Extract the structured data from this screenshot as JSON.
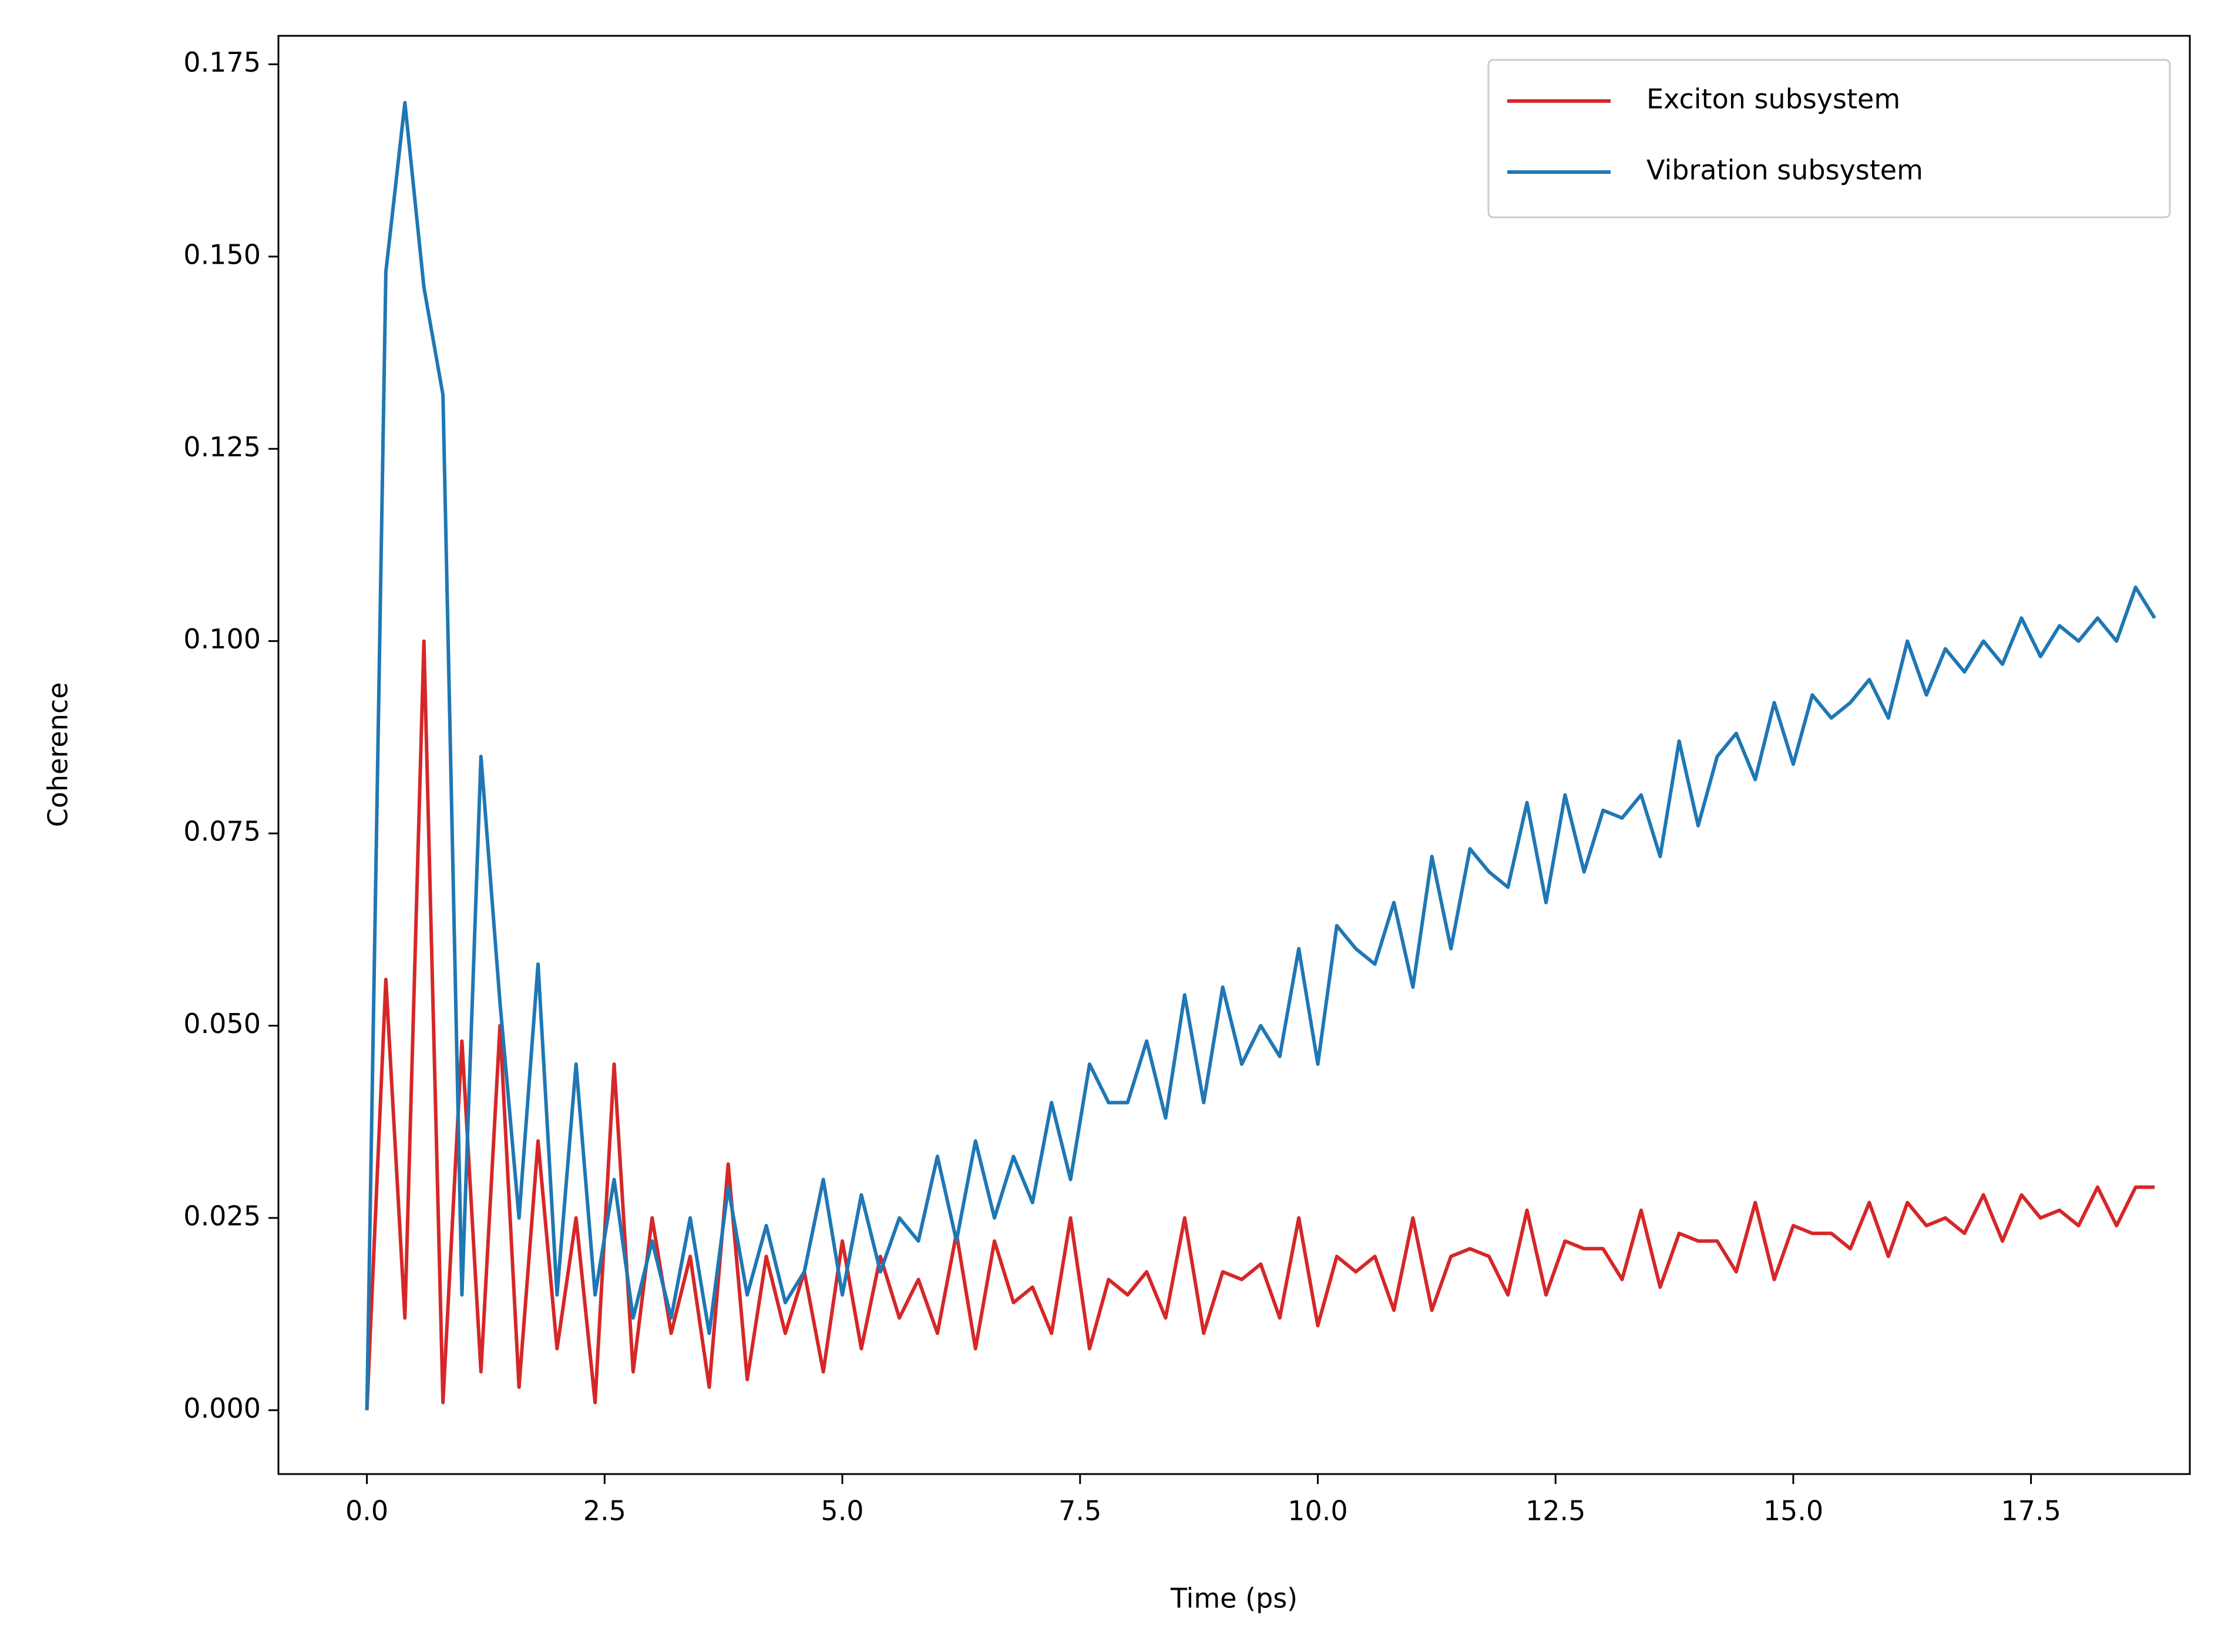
{
  "chart_data": {
    "type": "line",
    "xlabel": "Time (ps)",
    "ylabel": "Coherence",
    "x": [
      0,
      0.2,
      0.4,
      0.6,
      0.8,
      1.0,
      1.2,
      1.4,
      1.6,
      1.8,
      2.0,
      2.2,
      2.4,
      2.6,
      2.8,
      3.0,
      3.2,
      3.4,
      3.6,
      3.8,
      4.0,
      4.2,
      4.4,
      4.6,
      4.8,
      5.0,
      5.2,
      5.4,
      5.6,
      5.8,
      6.0,
      6.2,
      6.4,
      6.6,
      6.8,
      7.0,
      7.2,
      7.4,
      7.6,
      7.8,
      8.0,
      8.2,
      8.4,
      8.6,
      8.8,
      9.0,
      9.2,
      9.4,
      9.6,
      9.8,
      10.0,
      10.2,
      10.4,
      10.6,
      10.8,
      11.0,
      11.2,
      11.4,
      11.6,
      11.8,
      12.0,
      12.2,
      12.4,
      12.6,
      12.8,
      13.0,
      13.2,
      13.4,
      13.6,
      13.8,
      14.0,
      14.2,
      14.4,
      14.6,
      14.8,
      15.0,
      15.2,
      15.4,
      15.6,
      15.8,
      16.0,
      16.2,
      16.4,
      16.6,
      16.8,
      17.0,
      17.2,
      17.4,
      17.6,
      17.8,
      18.0,
      18.2,
      18.4,
      18.6,
      18.8
    ],
    "series": [
      {
        "name": "Exciton subsystem",
        "color": "#d62728",
        "values": [
          0,
          0.056,
          0.012,
          0.1,
          0.001,
          0.048,
          0.005,
          0.05,
          0.003,
          0.035,
          0.008,
          0.025,
          0.001,
          0.045,
          0.005,
          0.025,
          0.01,
          0.02,
          0.003,
          0.032,
          0.004,
          0.02,
          0.01,
          0.018,
          0.005,
          0.022,
          0.008,
          0.02,
          0.012,
          0.017,
          0.01,
          0.023,
          0.008,
          0.022,
          0.014,
          0.016,
          0.01,
          0.025,
          0.008,
          0.017,
          0.015,
          0.018,
          0.012,
          0.025,
          0.01,
          0.018,
          0.017,
          0.019,
          0.012,
          0.025,
          0.011,
          0.02,
          0.018,
          0.02,
          0.013,
          0.025,
          0.013,
          0.02,
          0.021,
          0.02,
          0.015,
          0.026,
          0.015,
          0.022,
          0.021,
          0.021,
          0.017,
          0.026,
          0.016,
          0.023,
          0.022,
          0.022,
          0.018,
          0.027,
          0.017,
          0.024,
          0.023,
          0.023,
          0.021,
          0.027,
          0.02,
          0.027,
          0.024,
          0.025,
          0.023,
          0.028,
          0.022,
          0.028,
          0.025,
          0.026,
          0.024,
          0.029,
          0.024,
          0.029,
          0.029
        ]
      },
      {
        "name": "Vibration subsystem",
        "color": "#1f77b4",
        "values": [
          0,
          0.148,
          0.17,
          0.146,
          0.132,
          0.015,
          0.085,
          0.053,
          0.025,
          0.058,
          0.015,
          0.045,
          0.015,
          0.03,
          0.012,
          0.022,
          0.012,
          0.025,
          0.01,
          0.029,
          0.015,
          0.024,
          0.014,
          0.018,
          0.03,
          0.015,
          0.028,
          0.018,
          0.025,
          0.022,
          0.033,
          0.022,
          0.035,
          0.025,
          0.033,
          0.027,
          0.04,
          0.03,
          0.045,
          0.04,
          0.04,
          0.048,
          0.038,
          0.054,
          0.04,
          0.055,
          0.045,
          0.05,
          0.046,
          0.06,
          0.045,
          0.063,
          0.06,
          0.058,
          0.066,
          0.055,
          0.072,
          0.06,
          0.073,
          0.07,
          0.068,
          0.079,
          0.066,
          0.08,
          0.07,
          0.078,
          0.077,
          0.08,
          0.072,
          0.087,
          0.076,
          0.085,
          0.088,
          0.082,
          0.092,
          0.084,
          0.093,
          0.09,
          0.092,
          0.095,
          0.09,
          0.1,
          0.093,
          0.099,
          0.096,
          0.1,
          0.097,
          0.103,
          0.098,
          0.102,
          0.1,
          0.103,
          0.1,
          0.107,
          0.103
        ]
      }
    ],
    "xlim": [
      -0.93,
      19.17
    ],
    "ylim": [
      -0.0083,
      0.1787
    ],
    "xticks": [
      {
        "value": 0,
        "label": "0.0"
      },
      2.5,
      {
        "value": 5,
        "label": "5.0"
      },
      7.5,
      {
        "value": 10,
        "label": "10.0"
      },
      12.5,
      {
        "value": 15,
        "label": "15.0"
      },
      17.5
    ],
    "yticks": [
      {
        "value": 0,
        "label": "0.000"
      },
      0.025,
      {
        "value": 0.05,
        "label": "0.050"
      },
      0.075,
      {
        "value": 0.1,
        "label": "0.100"
      },
      0.125,
      {
        "value": 0.15,
        "label": "0.150"
      },
      0.175
    ],
    "grid": false,
    "legend": "upper right"
  }
}
